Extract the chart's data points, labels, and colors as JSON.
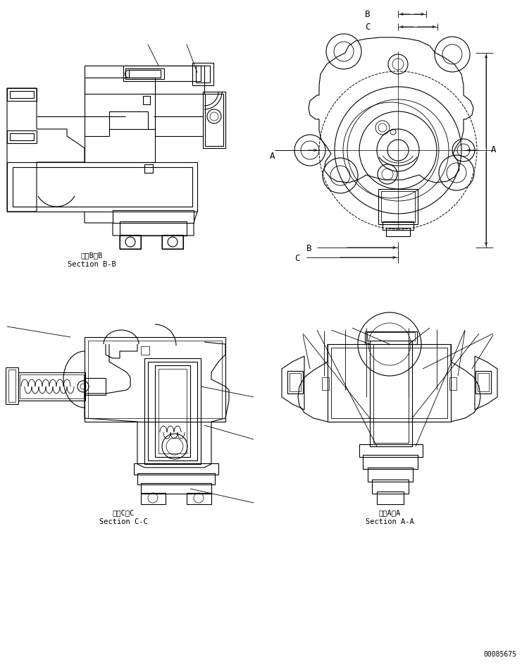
{
  "background_color": "#ffffff",
  "line_color": "#000000",
  "figure_width": 7.41,
  "figure_height": 9.43,
  "dpi": 100,
  "labels": {
    "section_bb_jp": "断面B－B",
    "section_bb_en": "Section B-B",
    "section_cc_jp": "断面C－C",
    "section_cc_en": "Section C-C",
    "section_aa_jp": "断面A－A",
    "section_aa_en": "Section A-A",
    "part_number": "00085675",
    "dim_A": "A",
    "dim_B": "B",
    "dim_C": "C"
  }
}
